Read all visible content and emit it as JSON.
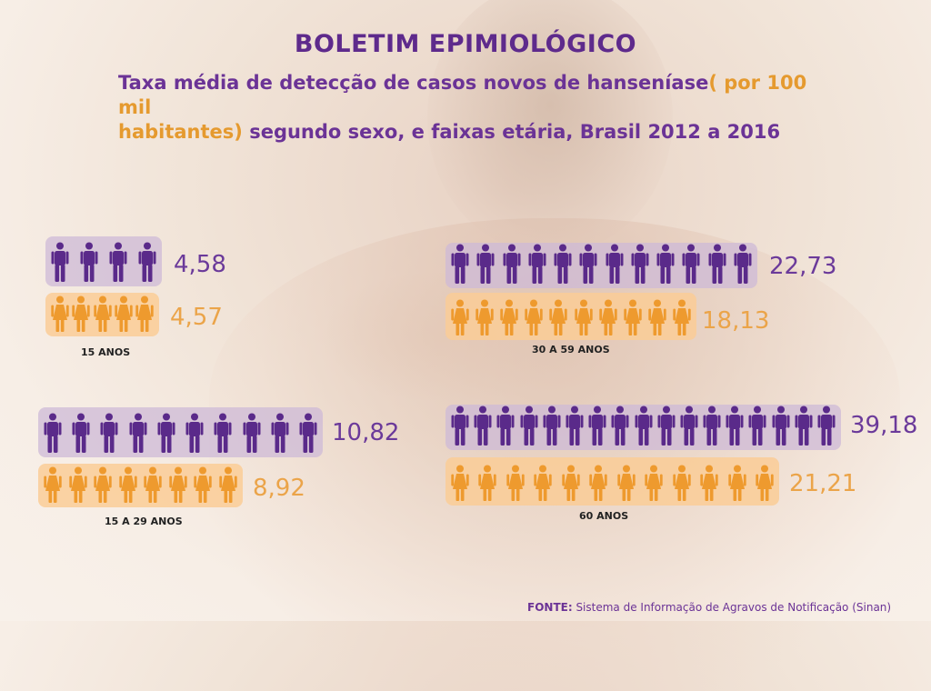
{
  "title": "BOLETIM EPIMIOLÓGICO",
  "subtitle": {
    "part1": "Taxa média de detecção de casos  novos de hanseníase",
    "part2": "( por 100 mil",
    "part3": "habitantes)",
    "part4": " segundo sexo, e faixas etária, Brasil 2012 a 2016"
  },
  "source": {
    "label": "FONTE:",
    "text": " Sistema de Informação de Agravos de Notificação (Sinan)"
  },
  "colors": {
    "male": "#5a2a8a",
    "female": "#ee9a2e"
  },
  "chart_data": {
    "type": "pictogram",
    "icon_names": {
      "male": "male-person-icon",
      "female": "female-person-icon"
    },
    "groups": [
      {
        "age_label": "15 ANOS",
        "male": {
          "value_label": "4,58",
          "value": 4.58,
          "icons": 4
        },
        "female": {
          "value_label": "4,57",
          "value": 4.57,
          "icons": 5
        }
      },
      {
        "age_label": "15 A 29 ANOS",
        "male": {
          "value_label": "10,82",
          "value": 10.82,
          "icons": 10
        },
        "female": {
          "value_label": "8,92",
          "value": 8.92,
          "icons": 8
        }
      },
      {
        "age_label": "30 A 59 ANOS",
        "male": {
          "value_label": "22,73",
          "value": 22.73,
          "icons": 12
        },
        "female": {
          "value_label": "18,13",
          "value": 18.13,
          "icons": 10
        }
      },
      {
        "age_label": "60 ANOS",
        "male": {
          "value_label": "39,18",
          "value": 39.18,
          "icons": 17
        },
        "female": {
          "value_label": "21,21",
          "value": 21.21,
          "icons": 12
        }
      }
    ]
  }
}
